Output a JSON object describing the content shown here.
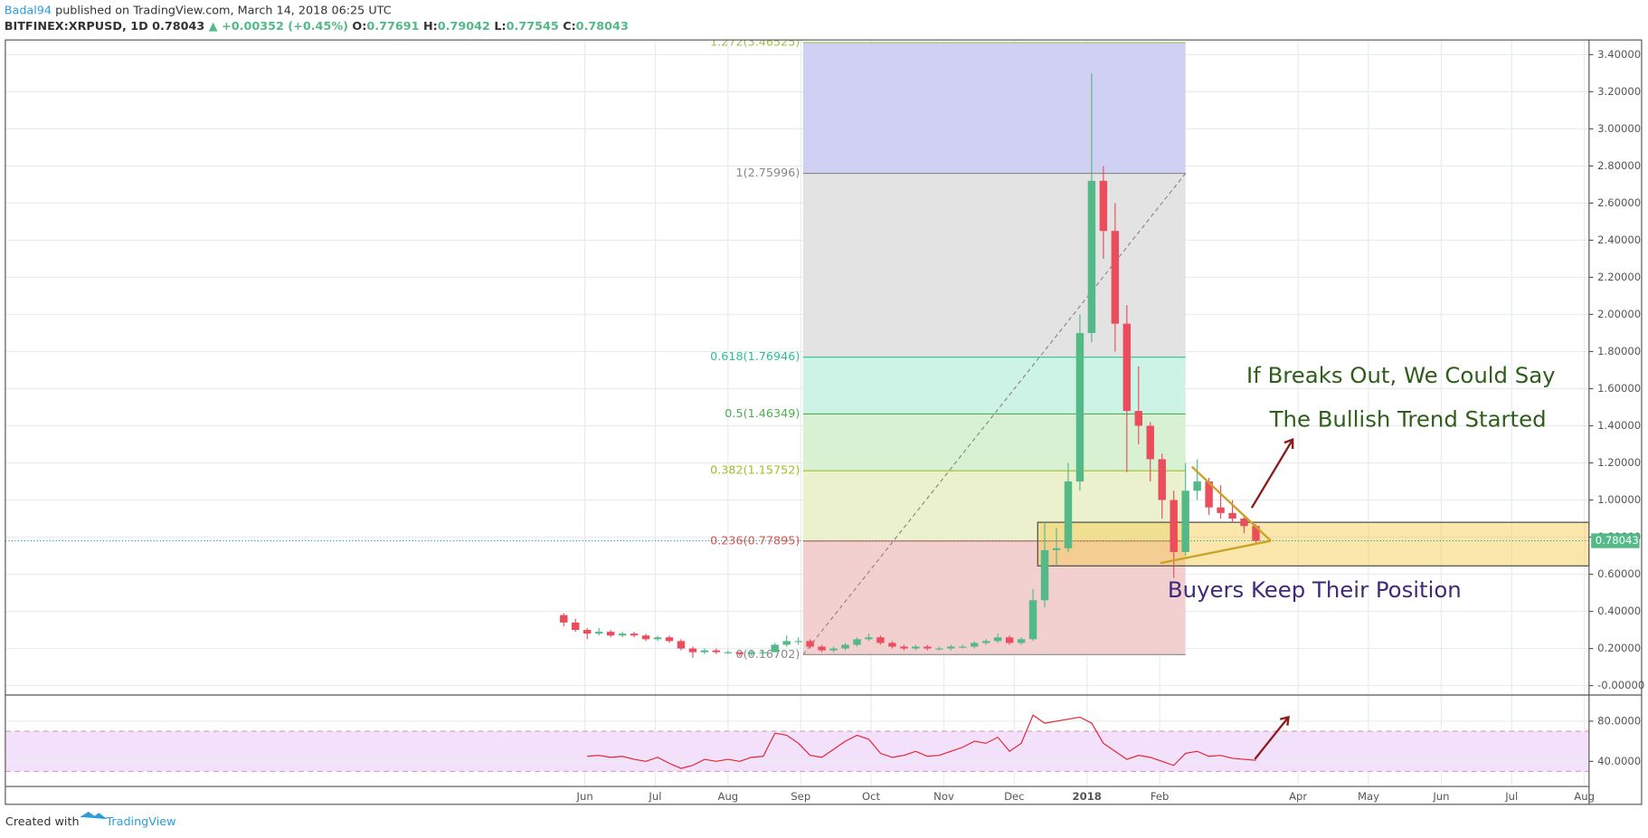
{
  "header": {
    "author": "Badal94",
    "published": " published on TradingView.com, March 14, 2018 06:25 UTC",
    "symbol": "BITFINEX:XRPUSD, 1D",
    "last": " 0.78043",
    "change": " ▲ +0.00352 (+0.45%)",
    "o_label": " O:",
    "o": "0.77691",
    "h_label": " H:",
    "h": "0.79042",
    "l_label": " L:",
    "l": "0.77545",
    "c_label": " C:",
    "c": "0.78043"
  },
  "annotations": [
    "If Breaks Out, We Could Say",
    "The Bullish Trend Started",
    "Buyers Keep Their Position"
  ],
  "footer": {
    "created": "Created with",
    "brand": "TradingView"
  },
  "chart_data": [
    {
      "type": "candlestick",
      "up_color": "#53b987",
      "down_color": "#eb4d5c",
      "x": [
        -9,
        -4,
        1,
        6,
        11,
        16,
        21,
        26,
        31,
        36,
        41,
        46,
        51,
        56,
        61,
        66,
        71,
        76,
        81,
        86,
        91,
        96,
        101,
        106,
        111,
        116,
        121,
        126,
        131,
        136,
        141,
        146,
        151,
        156,
        161,
        166,
        171,
        176,
        181,
        186,
        191,
        196,
        201,
        206,
        211,
        216,
        221,
        226,
        231,
        236,
        241,
        246,
        251,
        256,
        261,
        266,
        271,
        276,
        281,
        286
      ],
      "open": [
        0.38,
        0.34,
        0.3,
        0.28,
        0.29,
        0.27,
        0.28,
        0.27,
        0.25,
        0.26,
        0.24,
        0.2,
        0.18,
        0.19,
        0.18,
        0.18,
        0.17,
        0.18,
        0.18,
        0.22,
        0.24,
        0.24,
        0.21,
        0.19,
        0.2,
        0.22,
        0.25,
        0.26,
        0.23,
        0.21,
        0.2,
        0.21,
        0.2,
        0.2,
        0.21,
        0.21,
        0.23,
        0.24,
        0.26,
        0.23,
        0.25,
        0.46,
        0.73,
        0.74,
        1.1,
        1.9,
        2.72,
        2.45,
        1.95,
        1.48,
        1.4,
        1.22,
        1.0,
        0.72,
        1.05,
        1.1,
        0.96,
        0.93,
        0.9,
        0.86
      ],
      "high": [
        0.39,
        0.36,
        0.31,
        0.31,
        0.3,
        0.29,
        0.29,
        0.28,
        0.27,
        0.27,
        0.25,
        0.21,
        0.2,
        0.2,
        0.19,
        0.18,
        0.19,
        0.19,
        0.23,
        0.27,
        0.26,
        0.25,
        0.22,
        0.21,
        0.23,
        0.26,
        0.28,
        0.27,
        0.24,
        0.22,
        0.22,
        0.22,
        0.21,
        0.22,
        0.22,
        0.24,
        0.25,
        0.28,
        0.27,
        0.26,
        0.52,
        0.88,
        0.85,
        1.2,
        2.0,
        3.3,
        2.8,
        2.6,
        2.05,
        1.72,
        1.42,
        1.25,
        1.05,
        1.2,
        1.22,
        1.12,
        1.08,
        1.0,
        0.92,
        0.87
      ],
      "low": [
        0.32,
        0.29,
        0.25,
        0.27,
        0.26,
        0.26,
        0.26,
        0.24,
        0.24,
        0.23,
        0.19,
        0.15,
        0.17,
        0.17,
        0.17,
        0.16,
        0.16,
        0.17,
        0.18,
        0.21,
        0.22,
        0.2,
        0.18,
        0.18,
        0.19,
        0.21,
        0.24,
        0.22,
        0.2,
        0.19,
        0.19,
        0.19,
        0.19,
        0.19,
        0.2,
        0.2,
        0.22,
        0.23,
        0.22,
        0.22,
        0.24,
        0.42,
        0.65,
        0.72,
        1.05,
        1.85,
        2.3,
        1.8,
        1.15,
        1.3,
        1.1,
        0.9,
        0.58,
        0.7,
        1.0,
        0.92,
        0.9,
        0.88,
        0.82,
        0.77
      ],
      "close": [
        0.34,
        0.3,
        0.28,
        0.29,
        0.27,
        0.28,
        0.27,
        0.25,
        0.26,
        0.24,
        0.2,
        0.18,
        0.19,
        0.18,
        0.18,
        0.17,
        0.18,
        0.18,
        0.22,
        0.24,
        0.24,
        0.21,
        0.19,
        0.2,
        0.22,
        0.25,
        0.26,
        0.23,
        0.21,
        0.2,
        0.21,
        0.2,
        0.2,
        0.21,
        0.21,
        0.23,
        0.24,
        0.26,
        0.23,
        0.25,
        0.46,
        0.73,
        0.74,
        1.1,
        1.9,
        2.72,
        2.45,
        1.95,
        1.48,
        1.4,
        1.22,
        1.0,
        0.72,
        1.05,
        1.1,
        0.96,
        0.93,
        0.9,
        0.86,
        0.78
      ],
      "xlim": [
        -247,
        428
      ],
      "xticks": [
        {
          "value": 0,
          "label": "Jun"
        },
        {
          "value": 30,
          "label": "Jul"
        },
        {
          "value": 61,
          "label": "Aug"
        },
        {
          "value": 92,
          "label": "Sep"
        },
        {
          "value": 122,
          "label": "Oct"
        },
        {
          "value": 153,
          "label": "Nov"
        },
        {
          "value": 183,
          "label": "Dec"
        },
        {
          "value": 214,
          "label": "2018"
        },
        {
          "value": 245,
          "label": "Feb"
        },
        {
          "value": 304,
          "label": "Apr"
        },
        {
          "value": 334,
          "label": "May"
        },
        {
          "value": 365,
          "label": "Jun"
        },
        {
          "value": 395,
          "label": "Jul"
        },
        {
          "value": 426,
          "label": "Aug"
        }
      ],
      "ylim": [
        -0.045,
        3.479
      ],
      "yticks": [
        {
          "value": 3.4,
          "label": "3.40000"
        },
        {
          "value": 3.2,
          "label": "3.20000"
        },
        {
          "value": 3.0,
          "label": "3.00000"
        },
        {
          "value": 2.8,
          "label": "2.80000"
        },
        {
          "value": 2.6,
          "label": "2.60000"
        },
        {
          "value": 2.4,
          "label": "2.40000"
        },
        {
          "value": 2.2,
          "label": "2.20000"
        },
        {
          "value": 2.0,
          "label": "2.00000"
        },
        {
          "value": 1.8,
          "label": "1.80000"
        },
        {
          "value": 1.6,
          "label": "1.60000"
        },
        {
          "value": 1.4,
          "label": "1.40000"
        },
        {
          "value": 1.2,
          "label": "1.20000"
        },
        {
          "value": 1.0,
          "label": "1.00000"
        },
        {
          "value": 0.8,
          "label": "0.80000"
        },
        {
          "value": 0.6,
          "label": "0.60000"
        },
        {
          "value": 0.4,
          "label": "0.40000"
        },
        {
          "value": 0.2,
          "label": "0.20000"
        },
        {
          "value": 0,
          "label": "-0.00000"
        }
      ],
      "grid": true,
      "last_price": {
        "value": 0.78043,
        "label": "0.78043",
        "color": "#53b987"
      },
      "fib": {
        "x": [
          93,
          256
        ],
        "levels": [
          {
            "label": "1.272(3.46525)",
            "value": 3.46525,
            "color": "#9bc34a",
            "fill": "#d0d0f4"
          },
          {
            "label": "1(2.75996)",
            "value": 2.75996,
            "color": "#888888",
            "fill": "#e3e3e3"
          },
          {
            "label": "0.618(1.76946)",
            "value": 1.76946,
            "color": "#2fbf8f",
            "fill": "#cdf2e6"
          },
          {
            "label": "0.5(1.46349)",
            "value": 1.46349,
            "color": "#4caf50",
            "fill": "#d8f1d2"
          },
          {
            "label": "0.382(1.15752)",
            "value": 1.15752,
            "color": "#9fbf2a",
            "fill": "#ebf1cd"
          },
          {
            "label": "0.236(0.77895)",
            "value": 0.77895,
            "color": "#d9534f",
            "fill": "#f3d0d0"
          },
          {
            "label": "0(0.16702)",
            "value": 0.16702,
            "color": "#888888"
          }
        ]
      },
      "zone": {
        "x": [
          193,
          428
        ],
        "y": [
          0.645,
          0.88
        ],
        "color": "#f7c948"
      },
      "triangle": [
        {
          "x": [
            258.7,
            292.4
          ],
          "y": [
            1.18,
            0.78
          ]
        },
        {
          "x": [
            245.3,
            292.4
          ],
          "y": [
            0.66,
            0.78
          ]
        }
      ]
    },
    {
      "type": "line",
      "color": "#e8212f",
      "x": [
        1,
        6,
        11,
        16,
        21,
        26,
        31,
        36,
        41,
        46,
        51,
        56,
        61,
        66,
        71,
        76,
        81,
        86,
        91,
        96,
        101,
        106,
        111,
        116,
        121,
        126,
        131,
        136,
        141,
        146,
        151,
        156,
        161,
        166,
        171,
        176,
        181,
        186,
        191,
        196,
        201,
        206,
        211,
        216,
        221,
        226,
        231,
        236,
        241,
        246,
        251,
        256,
        261,
        266,
        271,
        276,
        281,
        286
      ],
      "values": [
        45,
        46,
        44,
        45,
        42,
        40,
        44,
        38,
        33,
        36,
        42,
        40,
        42,
        40,
        44,
        45,
        68,
        66,
        58,
        46,
        44,
        52,
        60,
        66,
        62,
        48,
        44,
        46,
        50,
        45,
        46,
        50,
        54,
        60,
        58,
        64,
        50,
        58,
        86,
        78,
        80,
        82,
        84,
        78,
        58,
        50,
        42,
        46,
        44,
        40,
        36,
        48,
        50,
        45,
        46,
        43,
        42,
        41
      ],
      "ylim": [
        15,
        105
      ],
      "yticks": [
        {
          "value": 80,
          "label": "80.0000"
        },
        {
          "value": 40,
          "label": "40.0000"
        }
      ],
      "bands": [
        70,
        30
      ]
    }
  ]
}
